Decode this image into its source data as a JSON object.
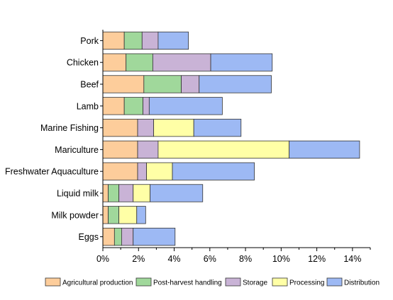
{
  "chart_data": {
    "type": "bar",
    "orientation": "horizontal",
    "stacked": true,
    "categories": [
      "Pork",
      "Chicken",
      "Beef",
      "Lamb",
      "Marine Fishing",
      "Mariculture",
      "Freshwater Aquaculture",
      "Liquid milk",
      "Milk powder",
      "Eggs"
    ],
    "series": [
      {
        "name": "Agricultural production",
        "color": "#FDCD9B",
        "values": [
          1.2,
          1.3,
          2.3,
          1.2,
          1.95,
          1.95,
          1.95,
          0.3,
          0.3,
          0.65
        ]
      },
      {
        "name": "Post-harvest handling",
        "color": "#A0D89B",
        "values": [
          1.0,
          1.5,
          2.1,
          1.05,
          0.0,
          0.0,
          0.0,
          0.6,
          0.6,
          0.4
        ]
      },
      {
        "name": "Storage",
        "color": "#C9B3D6",
        "values": [
          0.9,
          3.25,
          1.0,
          0.35,
          0.9,
          1.15,
          0.5,
          0.8,
          0.0,
          0.65
        ]
      },
      {
        "name": "Processing",
        "color": "#FFFFA6",
        "values": [
          0.0,
          0.0,
          0.0,
          0.0,
          2.25,
          7.35,
          1.45,
          0.95,
          1.0,
          0.0
        ]
      },
      {
        "name": "Distribution",
        "color": "#9DB9F4",
        "values": [
          1.7,
          3.45,
          4.05,
          4.1,
          2.65,
          3.95,
          4.6,
          2.95,
          0.5,
          2.35
        ]
      }
    ],
    "xlim": [
      0,
      15
    ],
    "x_ticks": [
      "0%",
      "2%",
      "4%",
      "6%",
      "8%",
      "10%",
      "12%",
      "14%"
    ],
    "x_tick_values": [
      0,
      2,
      4,
      6,
      8,
      10,
      12,
      14
    ],
    "xlabel": "",
    "ylabel": "",
    "title": "",
    "grid": false,
    "legend_position": "bottom"
  }
}
